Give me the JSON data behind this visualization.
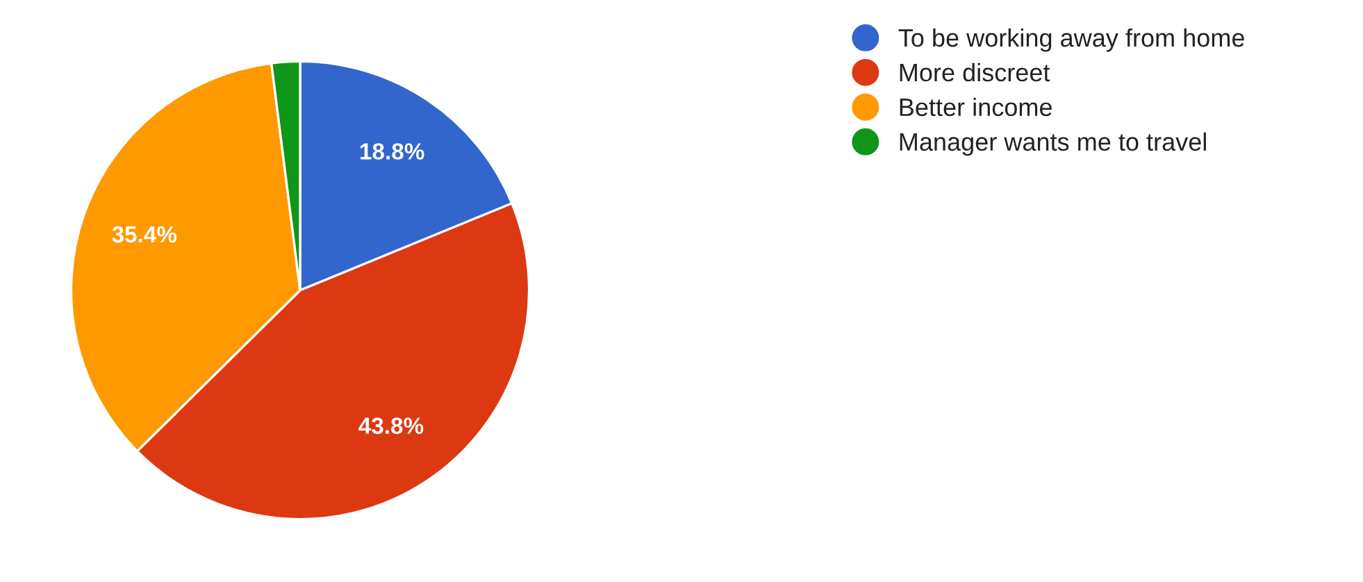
{
  "chart_data": {
    "type": "pie",
    "categories": [
      "To be working away from home",
      "More discreet",
      "Better income",
      "Manager wants me to travel"
    ],
    "values": [
      18.8,
      43.8,
      35.4,
      2.0
    ],
    "colors": [
      "#3366cc",
      "#dc3912",
      "#ff9900",
      "#109618"
    ],
    "value_labels": [
      "18.8%",
      "43.8%",
      "35.4%",
      null
    ],
    "legend": "right"
  }
}
